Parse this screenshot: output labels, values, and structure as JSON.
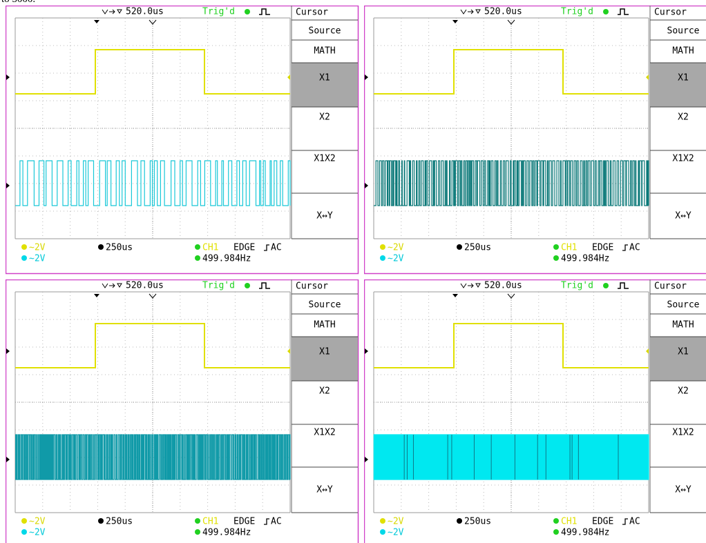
{
  "caption_fragment": "to 5000.",
  "panels": [
    {
      "timebase_offset": "520.0us",
      "trigger_status": "Trig'd",
      "menu": {
        "title": "Cursor",
        "items": [
          "Source",
          "MATH",
          "X1",
          "X2",
          "X1X2",
          "X↔Y"
        ]
      },
      "ch1_scale": "∼2V",
      "ch2_scale": "∼2V",
      "timebase": "250us",
      "trigger_source": "CH1",
      "trigger_type": "EDGE",
      "coupling": "AC",
      "frequency": "499.984Hz"
    },
    {
      "timebase_offset": "520.0us",
      "trigger_status": "Trig'd",
      "menu": {
        "title": "Cursor",
        "items": [
          "Source",
          "MATH",
          "X1",
          "X2",
          "X1X2",
          "X↔Y"
        ]
      },
      "ch1_scale": "∼2V",
      "ch2_scale": "∼2V",
      "timebase": "250us",
      "trigger_source": "CH1",
      "trigger_type": "EDGE",
      "coupling": "AC",
      "frequency": "499.984Hz"
    },
    {
      "timebase_offset": "520.0us",
      "trigger_status": "Trig'd",
      "menu": {
        "title": "Cursor",
        "items": [
          "Source",
          "MATH",
          "X1",
          "X2",
          "X1X2",
          "X↔Y"
        ]
      },
      "ch1_scale": "∼2V",
      "ch2_scale": "∼2V",
      "timebase": "250us",
      "trigger_source": "CH1",
      "trigger_type": "EDGE",
      "coupling": "AC",
      "frequency": "499.984Hz"
    },
    {
      "timebase_offset": "520.0us",
      "trigger_status": "Trig'd",
      "menu": {
        "title": "Cursor",
        "items": [
          "Source",
          "MATH",
          "X1",
          "X2",
          "X1X2",
          "X↔Y"
        ]
      },
      "ch1_scale": "∼2V",
      "ch2_scale": "∼2V",
      "timebase": "250us",
      "trigger_source": "CH1",
      "trigger_type": "EDGE",
      "coupling": "AC",
      "frequency": "499.984Hz"
    }
  ]
}
